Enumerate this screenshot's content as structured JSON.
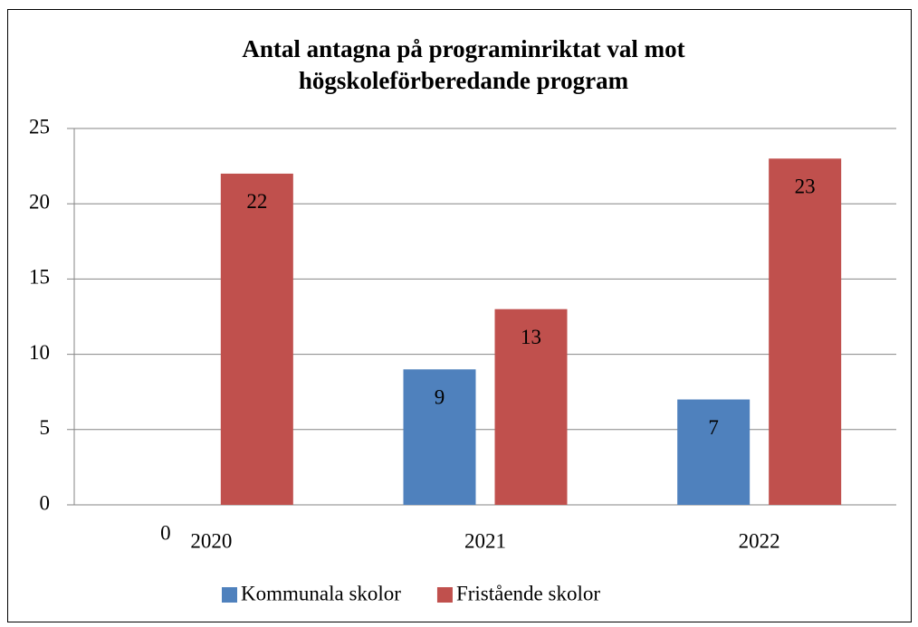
{
  "chart_data": {
    "type": "bar",
    "title": [
      "Antal antagna på programinriktat val mot",
      "högskoleförberedande program"
    ],
    "categories": [
      "2020",
      "2021",
      "2022"
    ],
    "series": [
      {
        "name": "Kommunala skolor",
        "color": "#4f81bd",
        "values": [
          0,
          9,
          7
        ]
      },
      {
        "name": "Fristående skolor",
        "color": "#c0504d",
        "values": [
          22,
          13,
          23
        ]
      }
    ],
    "ylim": [
      0,
      25
    ],
    "yticks": [
      0,
      5,
      10,
      15,
      20,
      25
    ],
    "grid": true,
    "legend": "bottom"
  }
}
